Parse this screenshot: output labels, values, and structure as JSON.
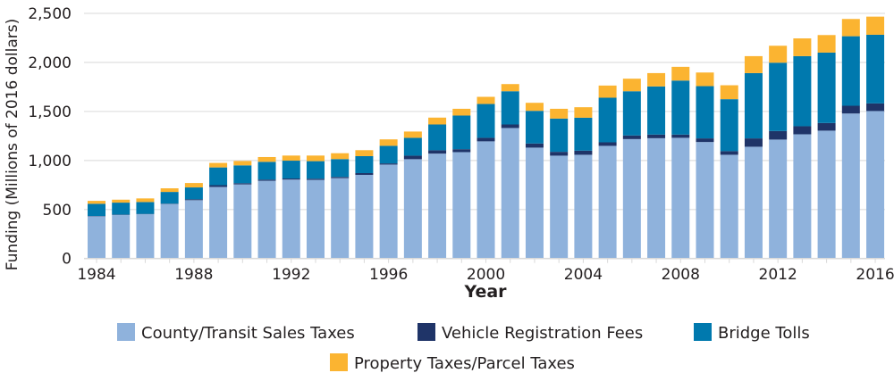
{
  "chart_data": {
    "type": "bar",
    "stacked": true,
    "title": "",
    "xlabel": "Year",
    "ylabel": "Funding (Millions of 2016 dollars)",
    "ylim": [
      0,
      2500
    ],
    "yticks": [
      0,
      500,
      1000,
      1500,
      2000,
      2500
    ],
    "ytick_labels": [
      "0",
      "500",
      "1,000",
      "1,500",
      "2,000",
      "2,500"
    ],
    "xtick_labels": [
      "1984",
      "1988",
      "1992",
      "1996",
      "2000",
      "2004",
      "2008",
      "2012",
      "2016"
    ],
    "grid": "horizontal",
    "legend_position": "bottom",
    "categories": [
      "1984",
      "1985",
      "1986",
      "1987",
      "1988",
      "1989",
      "1990",
      "1991",
      "1992",
      "1993",
      "1994",
      "1995",
      "1996",
      "1997",
      "1998",
      "1999",
      "2000",
      "2001",
      "2002",
      "2003",
      "2004",
      "2005",
      "2006",
      "2007",
      "2008",
      "2009",
      "2010",
      "2011",
      "2012",
      "2013",
      "2014",
      "2015",
      "2016"
    ],
    "series": [
      {
        "name": "County/Transit Sales Taxes",
        "color": "#8fb2dc",
        "values": [
          431,
          445,
          452,
          556,
          595,
          730,
          756,
          793,
          805,
          802,
          820,
          853,
          958,
          1013,
          1070,
          1085,
          1195,
          1331,
          1131,
          1049,
          1058,
          1149,
          1218,
          1227,
          1231,
          1188,
          1058,
          1140,
          1213,
          1267,
          1304,
          1479,
          1504
        ]
      },
      {
        "name": "Vehicle Registration Fees",
        "color": "#1f3468",
        "values": [
          3,
          3,
          3,
          4,
          9,
          18,
          12,
          12,
          11,
          12,
          12,
          18,
          12,
          36,
          34,
          30,
          36,
          36,
          42,
          39,
          42,
          36,
          37,
          37,
          33,
          37,
          37,
          85,
          87,
          82,
          78,
          79,
          78
        ]
      },
      {
        "name": "Bridge Tolls",
        "color": "#0079ae",
        "values": [
          124,
          122,
          121,
          119,
          121,
          181,
          182,
          181,
          182,
          179,
          182,
          173,
          179,
          182,
          263,
          343,
          345,
          339,
          333,
          339,
          336,
          455,
          451,
          491,
          551,
          533,
          530,
          666,
          697,
          715,
          718,
          709,
          700
        ]
      },
      {
        "name": "Property Taxes/Parcel Taxes",
        "color": "#fbb431",
        "values": [
          30,
          30,
          37,
          37,
          45,
          46,
          45,
          49,
          52,
          57,
          60,
          61,
          66,
          64,
          70,
          69,
          73,
          73,
          82,
          100,
          107,
          124,
          128,
          136,
          140,
          139,
          142,
          173,
          173,
          181,
          179,
          176,
          185
        ]
      }
    ]
  },
  "legend": {
    "row1": [
      "County/Transit Sales Taxes",
      "Vehicle Registration Fees",
      "Bridge Tolls"
    ],
    "row2": [
      "Property Taxes/Parcel Taxes"
    ]
  },
  "colors": {
    "gridline": "#e6e6e6",
    "axis_text": "#231f20"
  }
}
